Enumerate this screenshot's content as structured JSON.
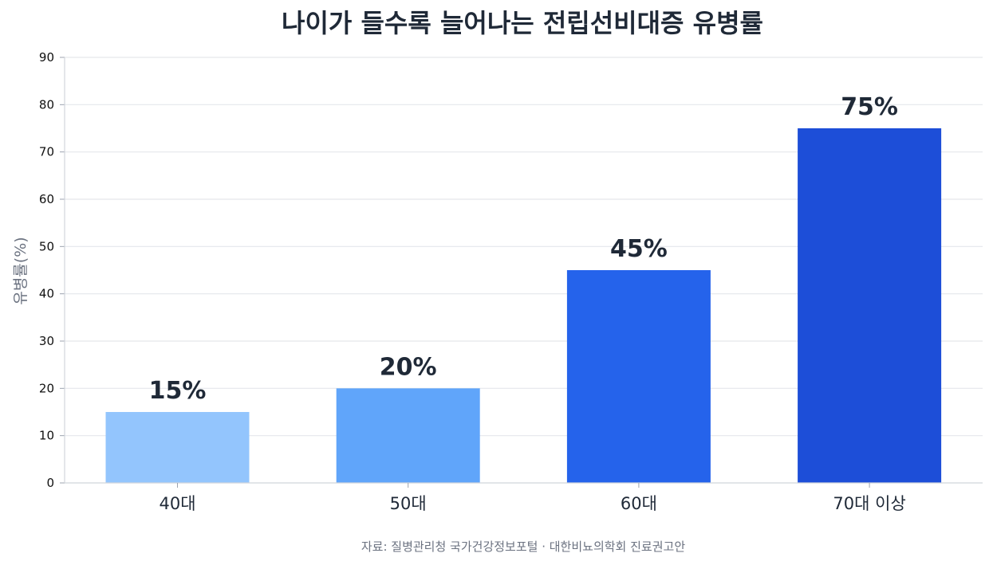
{
  "chart_data": {
    "type": "bar",
    "title": "나이가 들수록 늘어나는 전립선비대증 유병률",
    "xlabel": "",
    "ylabel": "유병률(%)",
    "categories": [
      "40대",
      "50대",
      "60대",
      "70대 이상"
    ],
    "values": [
      15,
      20,
      45,
      75
    ],
    "data_labels": [
      "15%",
      "20%",
      "45%",
      "75%"
    ],
    "ylim": [
      0,
      90
    ],
    "yticks": [
      0,
      10,
      20,
      30,
      40,
      50,
      60,
      70,
      80,
      90
    ],
    "grid": true,
    "legend": "none",
    "bar_colors": [
      "#93c5fd",
      "#60a5fa",
      "#2563eb",
      "#1d4ed8"
    ],
    "source": "자료: 질병관리청 국가건강정보포털 · 대한비뇨의학회 진료권고안"
  }
}
